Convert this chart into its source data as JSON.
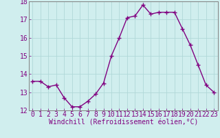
{
  "x": [
    0,
    1,
    2,
    3,
    4,
    5,
    6,
    7,
    8,
    9,
    10,
    11,
    12,
    13,
    14,
    15,
    16,
    17,
    18,
    19,
    20,
    21,
    22,
    23
  ],
  "y": [
    13.6,
    13.6,
    13.3,
    13.4,
    12.7,
    12.2,
    12.2,
    12.5,
    12.9,
    13.5,
    15.0,
    16.0,
    17.1,
    17.2,
    17.8,
    17.3,
    17.4,
    17.4,
    17.4,
    16.5,
    15.6,
    14.5,
    13.4,
    13.0
  ],
  "ylim": [
    12,
    18
  ],
  "xlim_min": -0.5,
  "xlim_max": 23.5,
  "yticks": [
    12,
    13,
    14,
    15,
    16,
    17,
    18
  ],
  "xticks": [
    0,
    1,
    2,
    3,
    4,
    5,
    6,
    7,
    8,
    9,
    10,
    11,
    12,
    13,
    14,
    15,
    16,
    17,
    18,
    19,
    20,
    21,
    22,
    23
  ],
  "xlabel": "Windchill (Refroidissement éolien,°C)",
  "line_color": "#800080",
  "marker": "+",
  "background_color": "#d0eeee",
  "grid_color": "#b0d8d8",
  "tick_color": "#800080",
  "label_color": "#800080",
  "axis_color": "#808080",
  "font_family": "monospace",
  "tick_fontsize": 7,
  "label_fontsize": 7
}
